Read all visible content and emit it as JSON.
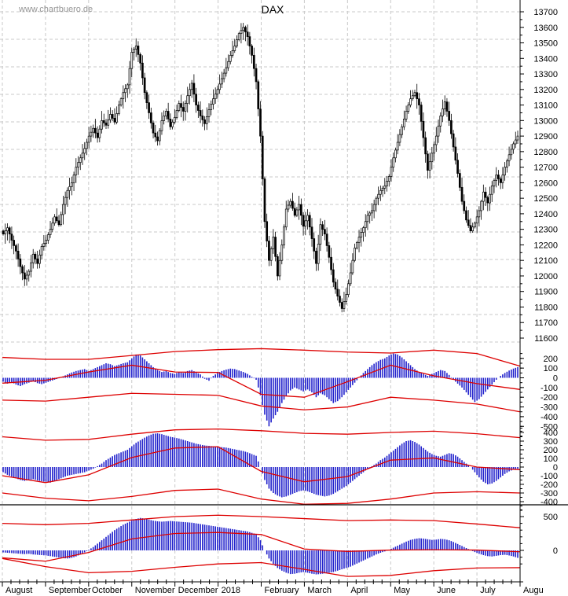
{
  "watermark": "www.chartbuero.de",
  "title": "DAX",
  "colors": {
    "histogram": "#2222cc",
    "signal_line": "#dd0000",
    "grid": "#c9c9c9",
    "axis": "#000000",
    "candle": "#000000",
    "watermark": "#969696"
  },
  "months": [
    "August",
    "September",
    "October",
    "November",
    "December",
    "2018",
    "February",
    "March",
    "April",
    "May",
    "June",
    "July",
    "Augu"
  ],
  "chart_data": {
    "type": "candlestick",
    "title": "DAX",
    "x_axis_months": [
      "August",
      "September",
      "October",
      "November",
      "December",
      "2018",
      "February",
      "March",
      "April",
      "May",
      "June",
      "July",
      "Augu"
    ],
    "panels": [
      {
        "name": "price-panel",
        "type": "candlestick",
        "y_axis": {
          "min": 11600,
          "max": 13700,
          "tick_step": 100
        },
        "closes": [
          12270,
          12310,
          12230,
          12160,
          12060,
          11980,
          12030,
          12140,
          12080,
          12190,
          12230,
          12300,
          12380,
          12330,
          12460,
          12550,
          12600,
          12700,
          12760,
          12820,
          12900,
          12950,
          12890,
          13000,
          12970,
          13040,
          12990,
          13100,
          13180,
          13230,
          13440,
          13480,
          13370,
          13180,
          13050,
          12920,
          12870,
          13000,
          13060,
          12960,
          13020,
          13110,
          13060,
          13160,
          13240,
          13100,
          13030,
          12980,
          13070,
          13140,
          13200,
          13270,
          13340,
          13420,
          13480,
          13560,
          13600,
          13540,
          13420,
          13250,
          12900,
          12350,
          12100,
          12250,
          12000,
          12200,
          12430,
          12480,
          12390,
          12460,
          12320,
          12390,
          12240,
          12080,
          12330,
          12270,
          12120,
          11960,
          11870,
          11790,
          11880,
          12020,
          12180,
          12250,
          12310,
          12390,
          12420,
          12500,
          12550,
          12580,
          12640,
          12760,
          12860,
          12960,
          13060,
          13140,
          13180,
          13100,
          12890,
          12680,
          12790,
          12900,
          13030,
          13120,
          13000,
          12830,
          12660,
          12480,
          12360,
          12290,
          12340,
          12420,
          12540,
          12470,
          12580,
          12650,
          12600,
          12700,
          12780,
          12850,
          12900
        ]
      },
      {
        "name": "oscillator-1",
        "type": "bar",
        "y_ticks": [
          200,
          100,
          0,
          -100,
          -200,
          -300,
          -400,
          -500
        ],
        "values": [
          -40,
          -60,
          -45,
          -70,
          -85,
          -65,
          -50,
          -35,
          -55,
          -65,
          -50,
          -35,
          -20,
          -5,
          15,
          35,
          55,
          70,
          80,
          90,
          70,
          90,
          110,
          130,
          150,
          140,
          120,
          135,
          150,
          160,
          200,
          240,
          230,
          190,
          150,
          110,
          80,
          60,
          70,
          50,
          40,
          60,
          50,
          70,
          80,
          55,
          35,
          -10,
          -30,
          20,
          50,
          70,
          85,
          95,
          90,
          75,
          60,
          40,
          10,
          -20,
          -180,
          -380,
          -500,
          -420,
          -350,
          -260,
          -190,
          -130,
          -100,
          -120,
          -140,
          -120,
          -150,
          -200,
          -160,
          -180,
          -220,
          -260,
          -240,
          -200,
          -150,
          -100,
          -50,
          0,
          50,
          90,
          130,
          160,
          185,
          200,
          230,
          250,
          240,
          210,
          170,
          130,
          90,
          60,
          40,
          20,
          40,
          60,
          80,
          70,
          30,
          -20,
          -60,
          -100,
          -150,
          -200,
          -250,
          -220,
          -170,
          -120,
          -70,
          -20,
          20,
          50,
          75,
          95,
          110
        ],
        "signal_upper": [
          210,
          190,
          190,
          230,
          270,
          290,
          300,
          285,
          265,
          255,
          285,
          250,
          120
        ],
        "signal_mid": [
          -55,
          -25,
          60,
          130,
          60,
          55,
          -170,
          -200,
          -40,
          130,
          20,
          -60,
          -120
        ],
        "signal_lower": [
          -230,
          -240,
          -200,
          -160,
          -170,
          -180,
          -290,
          -330,
          -300,
          -200,
          -230,
          -270,
          -350
        ]
      },
      {
        "name": "oscillator-2",
        "type": "bar",
        "y_ticks": [
          400,
          300,
          200,
          100,
          0,
          -100,
          -200,
          -300,
          -400
        ],
        "values": [
          -60,
          -90,
          -110,
          -130,
          -150,
          -160,
          -150,
          -140,
          -155,
          -165,
          -170,
          -180,
          -160,
          -140,
          -120,
          -100,
          -90,
          -80,
          -70,
          -60,
          -40,
          -20,
          10,
          40,
          80,
          110,
          140,
          160,
          180,
          200,
          240,
          280,
          310,
          340,
          365,
          385,
          390,
          380,
          365,
          350,
          340,
          330,
          315,
          300,
          285,
          270,
          260,
          250,
          245,
          240,
          235,
          230,
          225,
          215,
          205,
          195,
          185,
          170,
          150,
          130,
          0,
          -150,
          -250,
          -300,
          -330,
          -350,
          -340,
          -320,
          -300,
          -280,
          -270,
          -280,
          -300,
          -320,
          -330,
          -340,
          -330,
          -310,
          -280,
          -250,
          -220,
          -180,
          -140,
          -100,
          -60,
          -20,
          10,
          40,
          80,
          110,
          150,
          190,
          230,
          270,
          300,
          310,
          290,
          260,
          220,
          180,
          150,
          130,
          120,
          140,
          160,
          150,
          120,
          80,
          40,
          0,
          -60,
          -120,
          -170,
          -200,
          -190,
          -160,
          -120,
          -80,
          -50,
          -30,
          -20
        ],
        "signal_upper": [
          350,
          310,
          320,
          380,
          430,
          440,
          420,
          390,
          380,
          400,
          415,
          385,
          340
        ],
        "signal_mid": [
          -100,
          -180,
          -90,
          110,
          220,
          235,
          -50,
          -170,
          -110,
          80,
          105,
          0,
          -30
        ],
        "signal_lower": [
          -300,
          -360,
          -390,
          -340,
          -270,
          -255,
          -370,
          -430,
          -420,
          -370,
          -300,
          -285,
          -300
        ]
      },
      {
        "name": "oscillator-3",
        "type": "bar",
        "y_ticks": [
          500,
          0
        ],
        "values": [
          -30,
          -35,
          -40,
          -45,
          -50,
          -55,
          -50,
          -60,
          -65,
          -70,
          -75,
          -85,
          -95,
          -105,
          -115,
          -120,
          -110,
          -90,
          -60,
          -30,
          10,
          50,
          100,
          150,
          200,
          250,
          300,
          340,
          380,
          410,
          440,
          465,
          480,
          470,
          455,
          440,
          430,
          425,
          430,
          435,
          430,
          425,
          420,
          415,
          410,
          400,
          390,
          380,
          370,
          360,
          350,
          340,
          330,
          320,
          310,
          300,
          290,
          280,
          260,
          240,
          150,
          0,
          -120,
          -200,
          -260,
          -300,
          -330,
          -350,
          -345,
          -330,
          -320,
          -330,
          -345,
          -355,
          -350,
          -340,
          -330,
          -320,
          -300,
          -280,
          -260,
          -240,
          -210,
          -180,
          -150,
          -120,
          -90,
          -60,
          -35,
          -15,
          10,
          40,
          70,
          100,
          130,
          155,
          170,
          180,
          175,
          165,
          155,
          160,
          170,
          165,
          150,
          125,
          95,
          65,
          35,
          5,
          -25,
          -50,
          -70,
          -85,
          -90,
          -80,
          -70,
          -65,
          -75,
          -90,
          -110
        ],
        "signal_upper": [
          400,
          380,
          400,
          450,
          500,
          520,
          500,
          470,
          440,
          450,
          440,
          390,
          335
        ],
        "signal_mid": [
          -110,
          -160,
          -30,
          170,
          250,
          265,
          235,
          20,
          -15,
          5,
          10,
          5,
          -20
        ],
        "signal_lower": [
          -120,
          -240,
          -330,
          -310,
          -250,
          -200,
          -180,
          -280,
          -385,
          -370,
          -300,
          -260,
          -255
        ]
      }
    ]
  }
}
